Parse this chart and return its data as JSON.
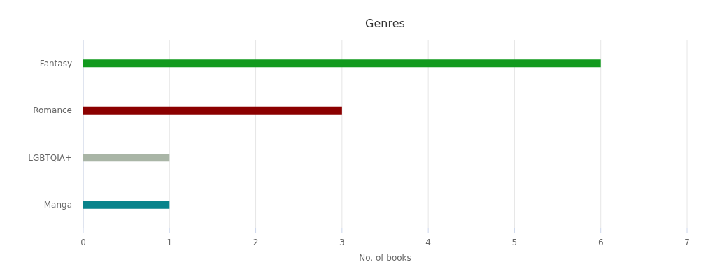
{
  "chart_data": {
    "type": "bar",
    "orientation": "horizontal",
    "title": "Genres",
    "xlabel": "No. of books",
    "categories": [
      "Fantasy",
      "Romance",
      "LGBTQIA+",
      "Manga"
    ],
    "values": [
      6,
      3,
      1,
      1
    ],
    "colors": [
      "#129a1e",
      "#8b0000",
      "#a9b5a6",
      "#08838b"
    ],
    "xlim": [
      0,
      7
    ],
    "xticks": [
      0,
      1,
      2,
      3,
      4,
      5,
      6,
      7
    ],
    "grid": "x"
  }
}
